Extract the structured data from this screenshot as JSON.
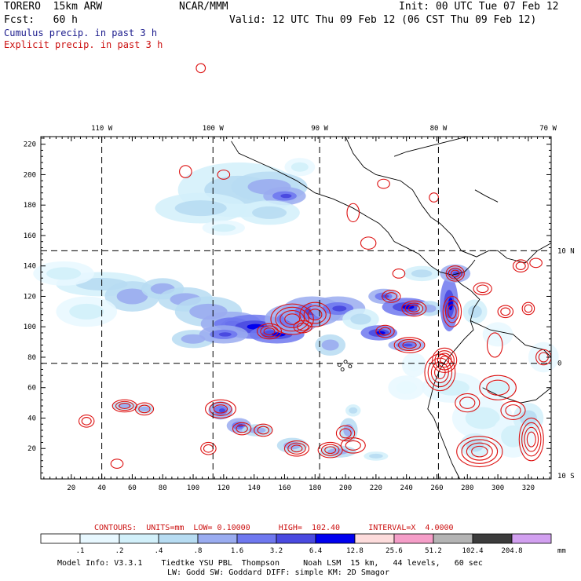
{
  "header": {
    "model": "TORERO  15km ARW",
    "center": "NCAR/MMM",
    "init": "Init: 00 UTC Tue 07 Feb 12",
    "fcst": "Fcst:   60 h",
    "valid": "Valid: 12 UTC Thu 09 Feb 12 (06 CST Thu 09 Feb 12)",
    "field1": "Cumulus precip. in past 3 h",
    "field2": "Explicit precip. in past 3 h"
  },
  "colors": {
    "field1": "#1a1a8c",
    "field2": "#cc1111",
    "contours_text": "#cc1111",
    "contour_line": "#dd1111",
    "coast": "#000000"
  },
  "chart_data": {
    "type": "heatmap",
    "title": "",
    "grid": true,
    "x_grid_ticks": {
      "ticks": [
        20,
        40,
        60,
        80,
        100,
        120,
        140,
        160,
        180,
        200,
        220,
        240,
        260,
        280,
        300,
        320
      ],
      "range": [
        0,
        335
      ]
    },
    "y_grid_ticks": {
      "ticks": [
        20,
        40,
        60,
        80,
        100,
        120,
        140,
        160,
        180,
        200,
        220
      ],
      "range": [
        0,
        225
      ]
    },
    "lon_labels": [
      "110 W",
      "100 W",
      "90 W",
      "80 W",
      "70 W"
    ],
    "lat_labels": [
      "10 N",
      "0",
      "10 S"
    ],
    "dashed_lon_lines_at_x": [
      40,
      113,
      183,
      261
    ],
    "dashed_lat_lines_at_y": [
      150,
      76
    ],
    "contours": {
      "label": "CONTOURS:  UNITS=mm  LOW= 0.10000      HIGH=  102.40      INTERVAL=X  4.0000"
    },
    "colorbar": {
      "levels": [
        ".1",
        ".2",
        ".4",
        ".8",
        "1.6",
        "3.2",
        "6.4",
        "12.8",
        "25.6",
        "51.2",
        "102.4",
        "204.8"
      ],
      "colors": [
        "#ffffff",
        "#e8f8ff",
        "#d2f0fa",
        "#b7dcf2",
        "#9aacf0",
        "#6f78ef",
        "#4a4ae0",
        "#0000ee",
        "#fddcdc",
        "#f59ec8",
        "#b4b4b4",
        "#3c3c3c",
        "#d2a0f0"
      ],
      "unit": "mm"
    }
  },
  "footer": {
    "line1": "Model Info: V3.3.1    Tiedtke YSU PBL  Thompson     Noah LSM  15 km,   44 levels,   60 sec",
    "line2": "LW: Godd SW: Goddard DIFF: simple KM: 2D Smagor"
  }
}
